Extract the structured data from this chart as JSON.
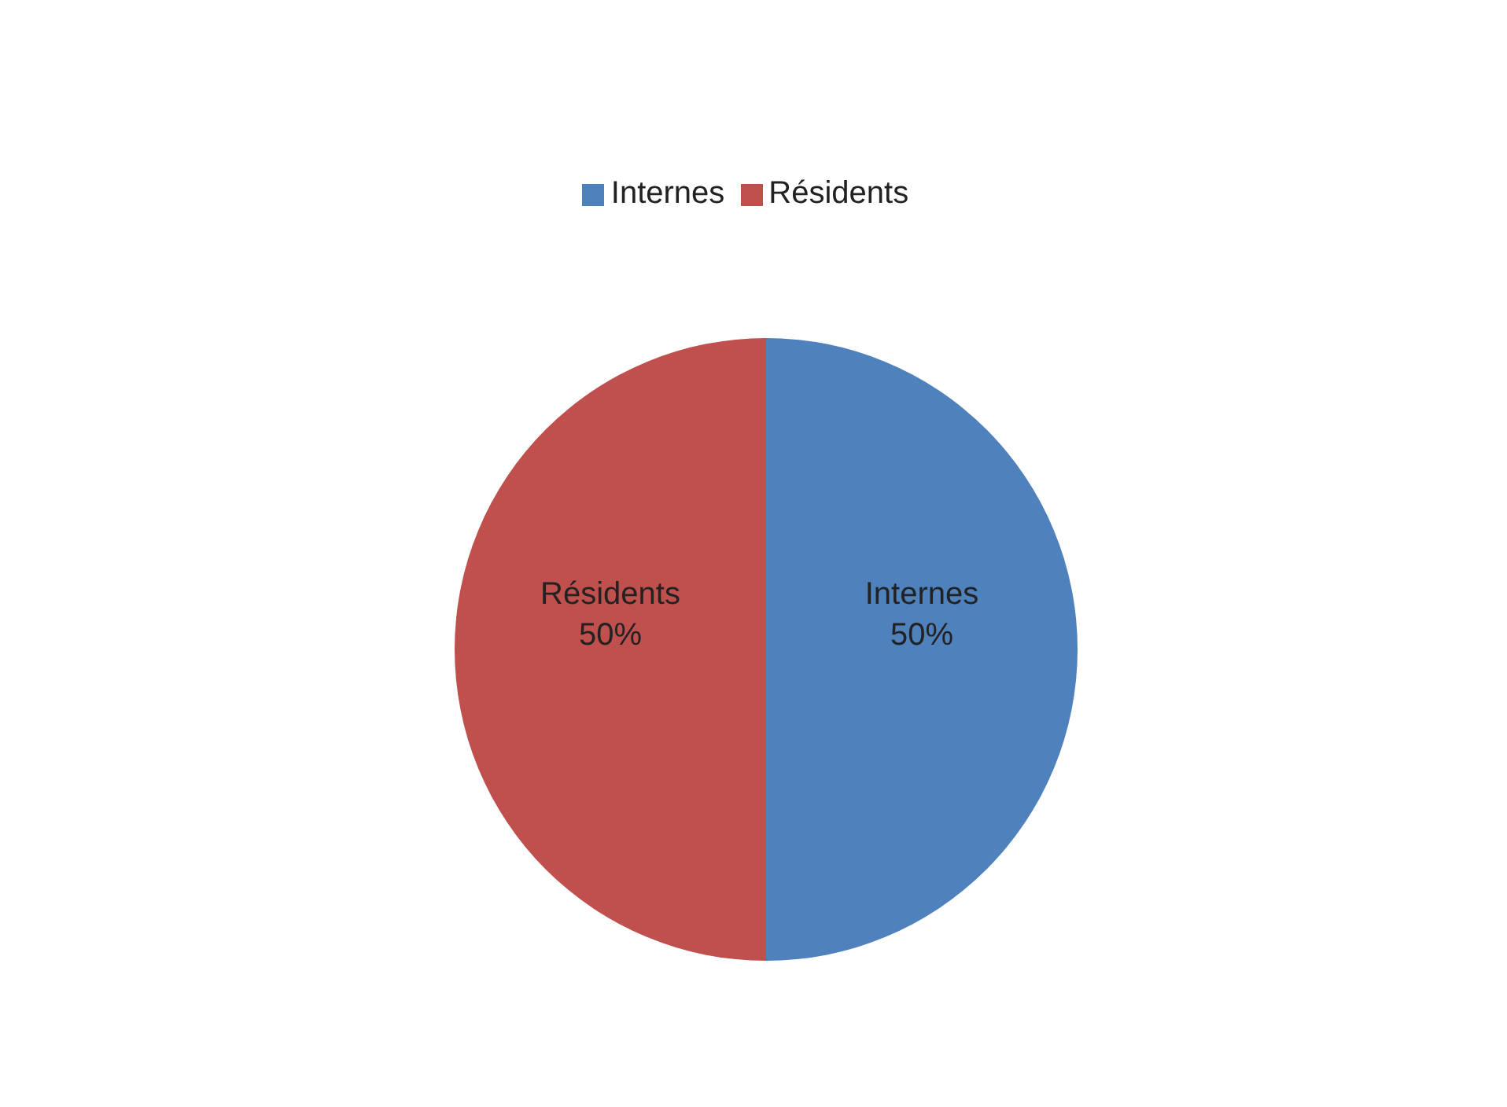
{
  "chart_data": {
    "type": "pie",
    "categories": [
      "Internes",
      "Résidents"
    ],
    "values": [
      50,
      50
    ],
    "value_labels": [
      "50%",
      "50%"
    ],
    "colors": [
      "#4f81bd",
      "#c0504d"
    ],
    "legend": "top"
  }
}
